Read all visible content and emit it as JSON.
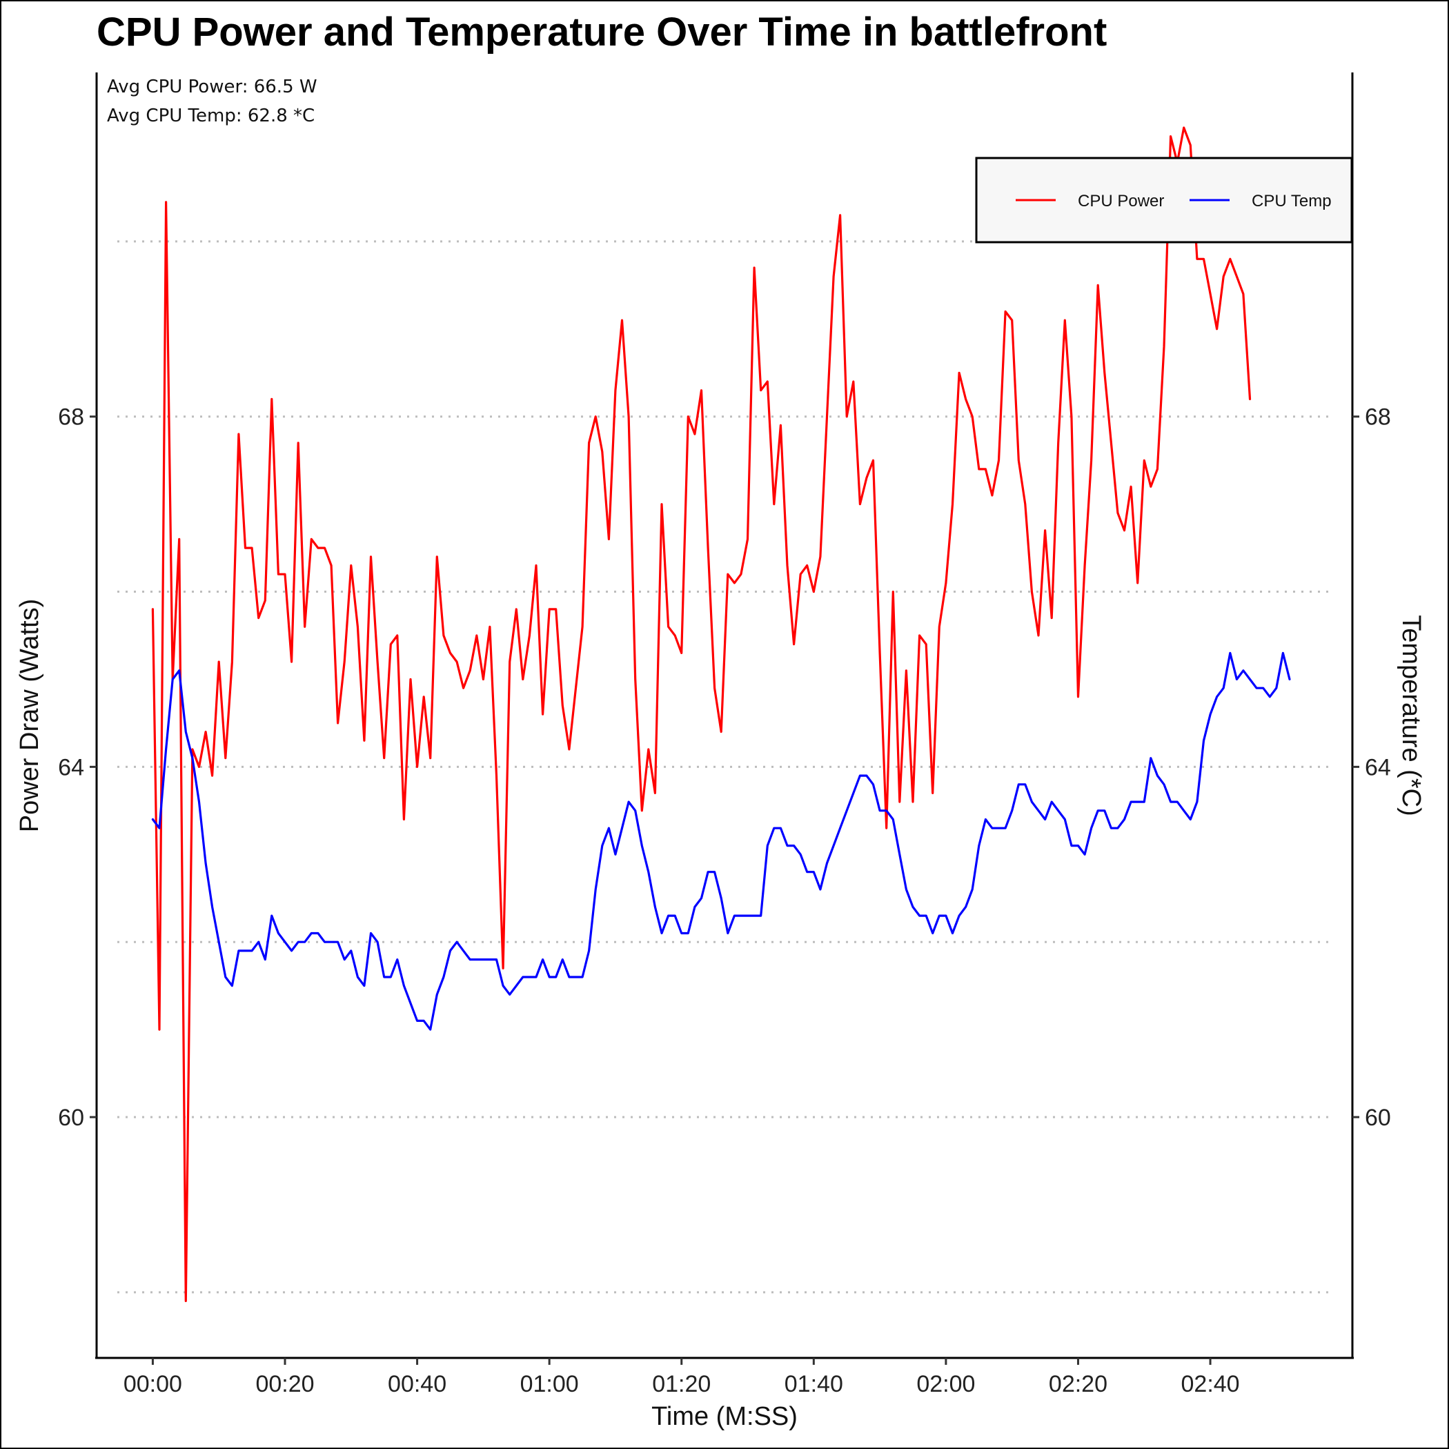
{
  "chart_data": {
    "type": "line",
    "title": "CPU Power and Temperature Over Time in battlefront",
    "xlabel": "Time (M:SS)",
    "ylabel_left": "Power Draw (Watts)",
    "ylabel_right": "Temperature (*C)",
    "x_ticks": [
      "00:00",
      "00:20",
      "00:40",
      "01:00",
      "01:20",
      "01:40",
      "02:00",
      "02:20",
      "02:40"
    ],
    "y_ticks_left": [
      60,
      64,
      68
    ],
    "y_ticks_right": [
      60,
      64,
      68
    ],
    "ylim": [
      57.25,
      71.93
    ],
    "xlim_seconds": [
      -8.5,
      181.5
    ],
    "grid": "horizontal dotted",
    "legend_position": "top-right",
    "annotations": [
      "Avg CPU Power: 66.5 W",
      "Avg CPU Temp: 62.8 *C"
    ],
    "x_seconds": [
      0,
      1,
      2,
      3,
      4,
      5,
      6,
      7,
      8,
      9,
      10,
      11,
      12,
      13,
      14,
      15,
      16,
      17,
      18,
      19,
      20,
      21,
      22,
      23,
      24,
      25,
      26,
      27,
      28,
      29,
      30,
      31,
      32,
      33,
      34,
      35,
      36,
      37,
      38,
      39,
      40,
      41,
      42,
      43,
      44,
      45,
      46,
      47,
      48,
      49,
      50,
      51,
      52,
      53,
      54,
      55,
      56,
      57,
      58,
      59,
      60,
      61,
      62,
      63,
      64,
      65,
      66,
      67,
      68,
      69,
      70,
      71,
      72,
      73,
      74,
      75,
      76,
      77,
      78,
      79,
      80,
      81,
      82,
      83,
      84,
      85,
      86,
      87,
      88,
      89,
      90,
      91,
      92,
      93,
      94,
      95,
      96,
      97,
      98,
      99,
      100,
      101,
      102,
      103,
      104,
      105,
      106,
      107,
      108,
      109,
      110,
      111,
      112,
      113,
      114,
      115,
      116,
      117,
      118,
      119,
      120,
      121,
      122,
      123,
      124,
      125,
      126,
      127,
      128,
      129,
      130,
      131,
      132,
      133,
      134,
      135,
      136,
      137,
      138,
      139,
      140,
      141,
      142,
      143,
      144,
      145,
      146,
      147,
      148,
      149,
      150,
      151,
      152,
      153,
      154,
      155,
      156,
      157,
      158,
      159,
      160,
      161,
      162,
      163,
      164,
      165,
      166,
      167,
      168,
      169,
      170,
      171,
      172,
      173
    ],
    "series": [
      {
        "name": "CPU Power",
        "color": "#ff0000",
        "values": [
          65.8,
          61.0,
          70.45,
          65.0,
          66.6,
          57.9,
          64.2,
          64.0,
          64.4,
          63.9,
          65.2,
          64.1,
          65.2,
          67.8,
          66.5,
          66.5,
          65.7,
          65.9,
          68.2,
          66.2,
          66.2,
          65.2,
          67.7,
          65.6,
          66.6,
          66.5,
          66.5,
          66.3,
          64.5,
          65.2,
          66.3,
          65.6,
          64.3,
          66.4,
          65.2,
          64.1,
          65.4,
          65.5,
          63.4,
          65.0,
          64.0,
          64.8,
          64.1,
          66.4,
          65.5,
          65.3,
          65.2,
          64.9,
          65.1,
          65.5,
          65.0,
          65.6,
          63.9,
          61.7,
          65.2,
          65.8,
          65.0,
          65.5,
          66.3,
          64.6,
          65.8,
          65.8,
          64.7,
          64.2,
          64.9,
          65.6,
          67.7,
          68.0,
          67.6,
          66.6,
          68.3,
          69.1,
          68.0,
          65.0,
          63.5,
          64.2,
          63.7,
          67.0,
          65.6,
          65.5,
          65.3,
          68.0,
          67.8,
          68.3,
          66.5,
          64.9,
          64.4,
          66.2,
          66.1,
          66.2,
          66.6,
          69.7,
          68.3,
          68.4,
          67.0,
          67.9,
          66.3,
          65.4,
          66.2,
          66.3,
          66.0,
          66.4,
          68.0,
          69.6,
          70.3,
          68.0,
          68.4,
          67.0,
          67.3,
          67.5,
          65.3,
          63.3,
          66.0,
          63.6,
          65.1,
          63.6,
          65.5,
          65.4,
          63.7,
          65.6,
          66.1,
          67.0,
          68.5,
          68.2,
          68.0,
          67.4,
          67.4,
          67.1,
          67.5,
          69.2,
          69.1,
          67.5,
          67.0,
          66.0,
          65.5,
          66.7,
          65.7,
          67.7,
          69.1,
          68.0,
          64.8,
          66.3,
          67.5,
          69.5,
          68.5,
          67.7,
          66.9,
          66.7,
          67.2,
          66.1,
          67.5,
          67.2,
          67.4,
          68.8,
          71.2,
          70.9,
          71.3,
          71.1,
          69.8,
          69.8,
          69.4,
          69.0,
          69.6,
          69.8,
          69.6,
          69.4,
          68.2
        ]
      },
      {
        "name": "CPU Temp",
        "color": "#0000ff",
        "values": [
          63.4,
          63.3,
          64.2,
          65.0,
          65.1,
          64.4,
          64.1,
          63.6,
          62.9,
          62.4,
          62.0,
          61.6,
          61.5,
          61.9,
          61.9,
          61.9,
          62.0,
          61.8,
          62.3,
          62.1,
          62.0,
          61.9,
          62.0,
          62.0,
          62.1,
          62.1,
          62.0,
          62.0,
          62.0,
          61.8,
          61.9,
          61.6,
          61.5,
          62.1,
          62.0,
          61.6,
          61.6,
          61.8,
          61.5,
          61.3,
          61.1,
          61.1,
          61.0,
          61.4,
          61.6,
          61.9,
          62.0,
          61.9,
          61.8,
          61.8,
          61.8,
          61.8,
          61.8,
          61.5,
          61.4,
          61.5,
          61.6,
          61.6,
          61.6,
          61.8,
          61.6,
          61.6,
          61.8,
          61.6,
          61.6,
          61.6,
          61.9,
          62.6,
          63.1,
          63.3,
          63.0,
          63.3,
          63.6,
          63.5,
          63.1,
          62.8,
          62.4,
          62.1,
          62.3,
          62.3,
          62.1,
          62.1,
          62.4,
          62.5,
          62.8,
          62.8,
          62.5,
          62.1,
          62.3,
          62.3,
          62.3,
          62.3,
          62.3,
          63.1,
          63.3,
          63.3,
          63.1,
          63.1,
          63.0,
          62.8,
          62.8,
          62.6,
          62.9,
          63.1,
          63.3,
          63.5,
          63.7,
          63.9,
          63.9,
          63.8,
          63.5,
          63.5,
          63.4,
          63.0,
          62.6,
          62.4,
          62.3,
          62.3,
          62.1,
          62.3,
          62.3,
          62.1,
          62.3,
          62.4,
          62.6,
          63.1,
          63.4,
          63.3,
          63.3,
          63.3,
          63.5,
          63.8,
          63.8,
          63.6,
          63.5,
          63.4,
          63.6,
          63.5,
          63.4,
          63.1,
          63.1,
          63.0,
          63.3,
          63.5,
          63.5,
          63.3,
          63.3,
          63.4,
          63.6,
          63.6,
          63.6,
          64.1,
          63.9,
          63.8,
          63.6,
          63.6,
          63.5,
          63.4,
          63.6,
          64.3,
          64.6,
          64.8,
          64.9,
          65.3,
          65.0,
          65.1,
          65.0,
          64.9,
          64.9,
          64.8,
          64.9,
          65.3,
          65.0
        ]
      }
    ]
  }
}
